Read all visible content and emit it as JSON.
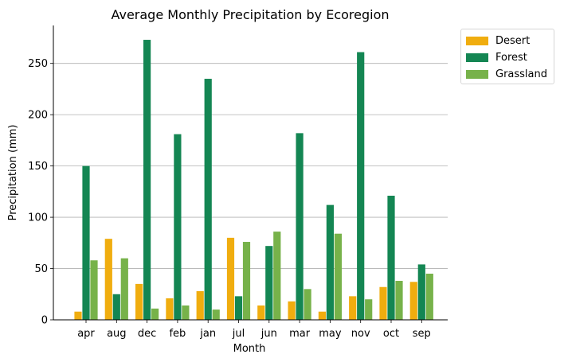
{
  "chart_data": {
    "type": "bar",
    "title": "Average Monthly Precipitation by Ecoregion",
    "xlabel": "Month",
    "ylabel": "Precipitation (mm)",
    "categories": [
      "apr",
      "aug",
      "dec",
      "feb",
      "jan",
      "jul",
      "jun",
      "mar",
      "may",
      "nov",
      "oct",
      "sep"
    ],
    "series": [
      {
        "name": "Desert",
        "color": "#f0ad0f",
        "values": [
          8,
          79,
          35,
          21,
          28,
          80,
          14,
          18,
          8,
          23,
          32,
          37
        ]
      },
      {
        "name": "Forest",
        "color": "#148653",
        "values": [
          150,
          25,
          273,
          181,
          235,
          23,
          72,
          182,
          112,
          261,
          121,
          54
        ]
      },
      {
        "name": "Grassland",
        "color": "#77b24a",
        "values": [
          58,
          60,
          11,
          14,
          10,
          76,
          86,
          30,
          84,
          20,
          38,
          45
        ]
      }
    ],
    "ylim": [
      0,
      287
    ],
    "yticks": [
      0,
      50,
      100,
      150,
      200,
      250
    ],
    "grid": "horizontal",
    "legend_position": "upper-right-outside"
  }
}
